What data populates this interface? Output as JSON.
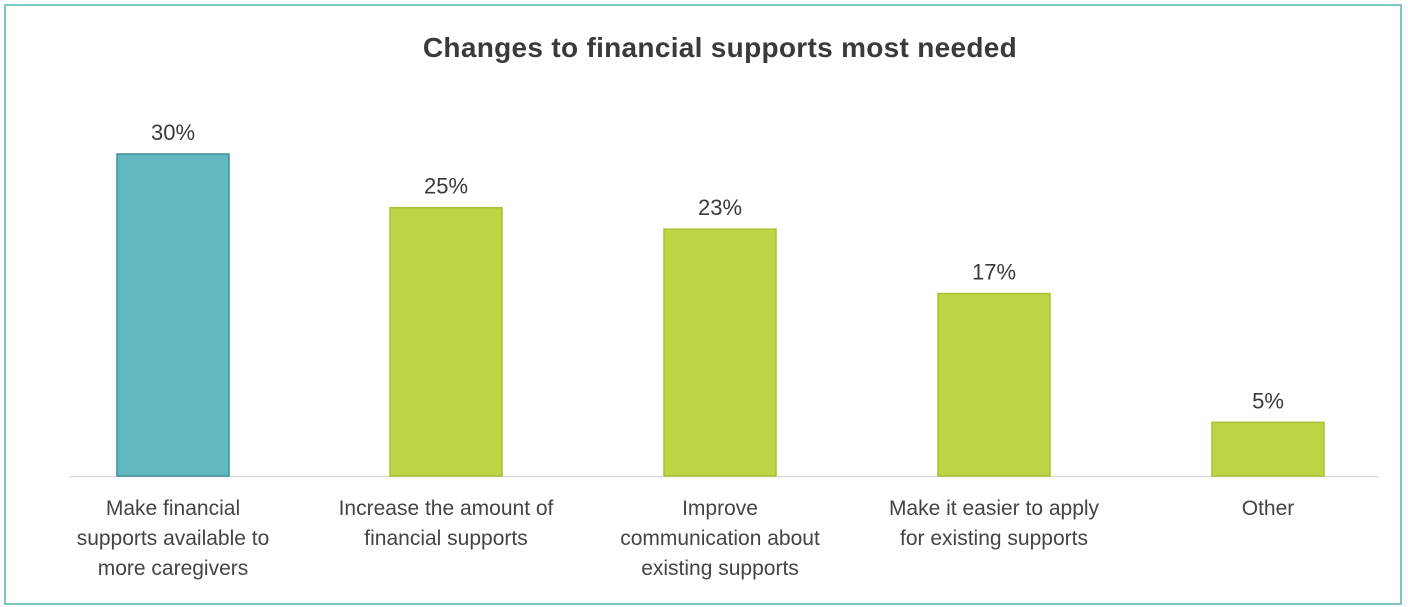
{
  "chart_data": {
    "type": "bar",
    "title": "Changes to financial supports most needed",
    "categories": [
      "Make financial supports available to more caregivers",
      "Increase the amount of financial supports",
      "Improve communication about existing supports",
      "Make it easier to apply for existing supports",
      "Other"
    ],
    "category_lines": [
      [
        "Make financial",
        "supports available to",
        "more caregivers"
      ],
      [
        "Increase the amount of",
        "financial supports"
      ],
      [
        "Improve",
        "communication about",
        "existing supports"
      ],
      [
        "Make it easier to apply",
        "for existing supports"
      ],
      [
        "Other"
      ]
    ],
    "values": [
      30,
      25,
      23,
      17,
      5
    ],
    "value_labels": [
      "30%",
      "25%",
      "23%",
      "17%",
      "5%"
    ],
    "bar_colors": [
      "#62b8be",
      "#bcd645",
      "#bcd645",
      "#bcd645",
      "#bcd645"
    ],
    "bar_edge_colors": [
      "#3f8f96",
      "#a7c232",
      "#a7c232",
      "#a7c232",
      "#a7c232"
    ],
    "ylim": [
      0,
      30
    ],
    "grid": false,
    "legend": false,
    "xlabel": "",
    "ylabel": ""
  }
}
